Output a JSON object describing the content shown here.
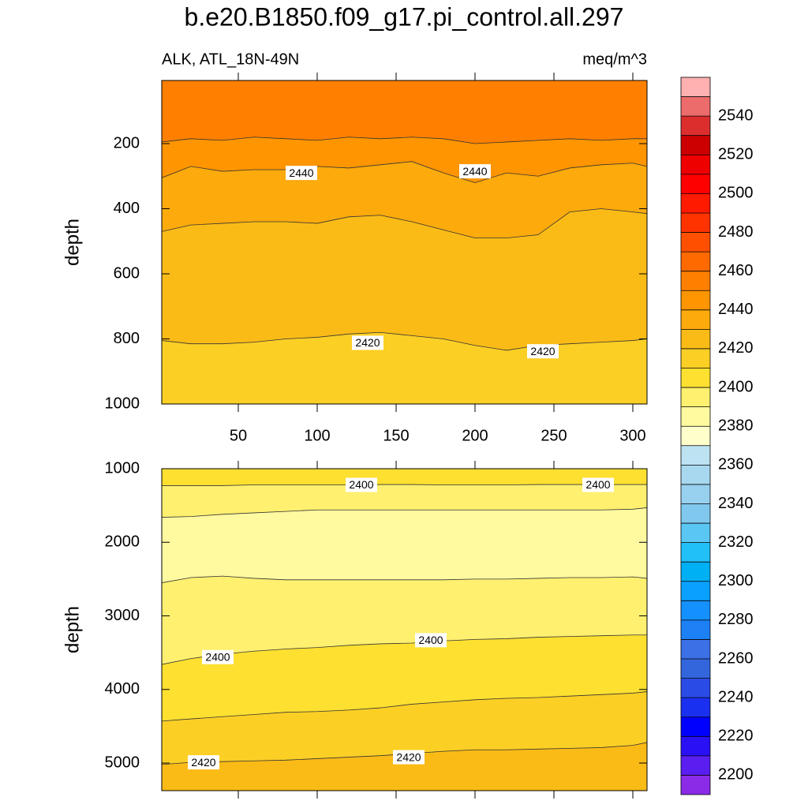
{
  "chart_data": [
    {
      "type": "contour",
      "title": "b.e20.B1850.f09_g17.pi_control.all.297",
      "subtitle_left": "ALK, ATL_18N-49N",
      "subtitle_right": "meq/m^3",
      "ylabel": "depth",
      "xlim": [
        1.5,
        309
      ],
      "xticks": [
        50,
        100,
        150,
        200,
        250,
        300
      ],
      "ylim": [
        6,
        1000
      ],
      "yticks": [
        200,
        400,
        600,
        800,
        1000
      ],
      "y_inverted": true,
      "top_fill": "#ff8000",
      "x": [
        1.5,
        20,
        40,
        60,
        80,
        100,
        120,
        140,
        160,
        180,
        200,
        220,
        240,
        260,
        280,
        300,
        309
      ],
      "contours": [
        {
          "level": 2450,
          "fill": "#ff9500",
          "values": [
            195,
            185,
            190,
            180,
            185,
            190,
            180,
            185,
            180,
            185,
            200,
            195,
            190,
            185,
            190,
            185,
            185
          ]
        },
        {
          "level": 2440,
          "fill": "#fcaa0c",
          "values": [
            305,
            270,
            285,
            280,
            280,
            270,
            275,
            265,
            255,
            290,
            320,
            290,
            300,
            275,
            265,
            260,
            270
          ]
        },
        {
          "level": 2430,
          "fill": "#fbbb16",
          "values": [
            470,
            450,
            445,
            440,
            440,
            445,
            425,
            420,
            440,
            465,
            490,
            490,
            480,
            410,
            400,
            410,
            415
          ]
        },
        {
          "level": 2420,
          "fill": "#fccf25",
          "values": [
            805,
            815,
            815,
            810,
            800,
            795,
            785,
            780,
            790,
            800,
            820,
            835,
            820,
            815,
            810,
            805,
            800
          ]
        }
      ],
      "contour_labels": [
        {
          "value": 2440,
          "x": 90,
          "y": 290
        },
        {
          "value": 2440,
          "x": 200,
          "y": 285
        },
        {
          "value": 2420,
          "x": 132,
          "y": 812
        },
        {
          "value": 2420,
          "x": 243,
          "y": 838
        }
      ]
    },
    {
      "type": "contour",
      "ylabel": "depth",
      "xlim": [
        1.5,
        309
      ],
      "xticks": [
        50,
        100,
        150,
        200,
        250,
        300
      ],
      "ylim": [
        1000,
        5375
      ],
      "yticks": [
        1000,
        2000,
        3000,
        4000,
        5000
      ],
      "y_inverted": true,
      "top_fill": "#fde030",
      "x": [
        1.5,
        20,
        40,
        60,
        80,
        100,
        120,
        140,
        160,
        180,
        200,
        220,
        240,
        260,
        280,
        300,
        309
      ],
      "contours": [
        {
          "level": 2400,
          "fill": "#fff070",
          "values": [
            1230,
            1230,
            1230,
            1220,
            1220,
            1220,
            1220,
            1215,
            1215,
            1220,
            1220,
            1220,
            1215,
            1215,
            1215,
            1215,
            1215
          ]
        },
        {
          "level": 2390,
          "fill": "#fff9a0",
          "values": [
            1660,
            1650,
            1620,
            1600,
            1580,
            1560,
            1560,
            1560,
            1560,
            1560,
            1560,
            1560,
            1560,
            1560,
            1560,
            1550,
            1530
          ]
        },
        {
          "level": 2390,
          "fill": "#fff070",
          "values": [
            2550,
            2480,
            2460,
            2490,
            2510,
            2510,
            2510,
            2510,
            2510,
            2510,
            2500,
            2500,
            2490,
            2480,
            2480,
            2470,
            2490
          ]
        },
        {
          "level": 2400,
          "fill": "#fde030",
          "values": [
            3660,
            3580,
            3520,
            3480,
            3450,
            3430,
            3400,
            3380,
            3370,
            3340,
            3320,
            3310,
            3290,
            3280,
            3270,
            3260,
            3260
          ]
        },
        {
          "level": 2410,
          "fill": "#fccf25",
          "values": [
            4430,
            4400,
            4370,
            4340,
            4310,
            4300,
            4280,
            4250,
            4200,
            4170,
            4140,
            4120,
            4110,
            4090,
            4070,
            4050,
            4030
          ]
        },
        {
          "level": 2420,
          "fill": "#fbbb16",
          "values": [
            5020,
            4990,
            4980,
            4970,
            4960,
            4940,
            4920,
            4900,
            4870,
            4840,
            4820,
            4820,
            4810,
            4800,
            4790,
            4760,
            4720
          ]
        }
      ],
      "contour_labels": [
        {
          "value": 2400,
          "x": 128,
          "y": 1220
        },
        {
          "value": 2400,
          "x": 278,
          "y": 1220
        },
        {
          "value": 2400,
          "x": 37,
          "y": 3560
        },
        {
          "value": 2400,
          "x": 172,
          "y": 3330
        },
        {
          "value": 2420,
          "x": 28,
          "y": 4990
        },
        {
          "value": 2420,
          "x": 158,
          "y": 4920
        }
      ]
    },
    {
      "type": "colorbar",
      "lim": [
        2190,
        2560
      ],
      "levels": [
        2200,
        2210,
        2220,
        2230,
        2240,
        2250,
        2260,
        2270,
        2280,
        2290,
        2300,
        2310,
        2320,
        2330,
        2340,
        2350,
        2360,
        2370,
        2380,
        2390,
        2400,
        2410,
        2420,
        2430,
        2440,
        2450,
        2460,
        2470,
        2480,
        2490,
        2500,
        2510,
        2520,
        2530,
        2540,
        2550
      ],
      "ticks": [
        2200,
        2220,
        2240,
        2260,
        2280,
        2300,
        2320,
        2340,
        2360,
        2380,
        2400,
        2420,
        2440,
        2460,
        2480,
        2500,
        2520,
        2540
      ],
      "colors": [
        "#8b2be8",
        "#5a1ef0",
        "#2a10f5",
        "#0000ff",
        "#1a30f0",
        "#2a4be6",
        "#3366dd",
        "#3b70e6",
        "#1e80f5",
        "#1590ff",
        "#0aa0ff",
        "#00b0f5",
        "#22c0f8",
        "#5ac6f2",
        "#80c8ee",
        "#98d0f0",
        "#a8d8f0",
        "#bde2f2",
        "#ffffcc",
        "#fff9a0",
        "#fff070",
        "#fde030",
        "#fccf25",
        "#fbbb16",
        "#fcaa0c",
        "#ff9500",
        "#ff8000",
        "#ff6a00",
        "#ff5000",
        "#ff3300",
        "#ff1a00",
        "#ff0000",
        "#ee0000",
        "#cc0000",
        "#dd2e2e",
        "#ec6c6c",
        "#ffb0b0"
      ]
    }
  ]
}
